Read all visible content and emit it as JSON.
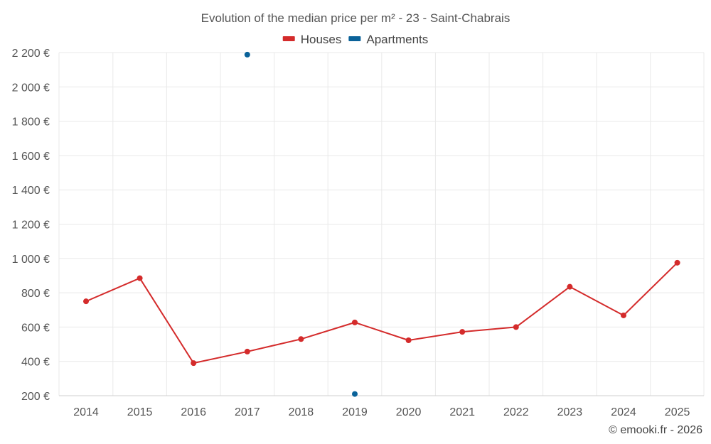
{
  "chart_data": {
    "type": "line",
    "title": "Evolution of the median price per m² - 23 - Saint-Chabrais",
    "x": [
      "2014",
      "2015",
      "2016",
      "2017",
      "2018",
      "2019",
      "2020",
      "2021",
      "2022",
      "2023",
      "2024",
      "2025"
    ],
    "y_ticks": [
      "200 €",
      "400 €",
      "600 €",
      "800 €",
      "1 000 €",
      "1 200 €",
      "1 400 €",
      "1 600 €",
      "1 800 €",
      "2 000 €",
      "2 200 €"
    ],
    "y_tick_values": [
      200,
      400,
      600,
      800,
      1000,
      1200,
      1400,
      1600,
      1800,
      2000,
      2200
    ],
    "ylim": [
      200,
      2200
    ],
    "grid": true,
    "legend_position": "top-center",
    "series": [
      {
        "name": "Houses",
        "color": "#d42b2b",
        "values": [
          750,
          885,
          390,
          457,
          530,
          627,
          523,
          572,
          600,
          835,
          668,
          975
        ]
      },
      {
        "name": "Apartments",
        "color": "#0a6299",
        "values": [
          null,
          null,
          null,
          2188,
          null,
          210,
          null,
          null,
          null,
          null,
          null,
          null
        ]
      }
    ],
    "credit": "© emooki.fr - 2026"
  }
}
